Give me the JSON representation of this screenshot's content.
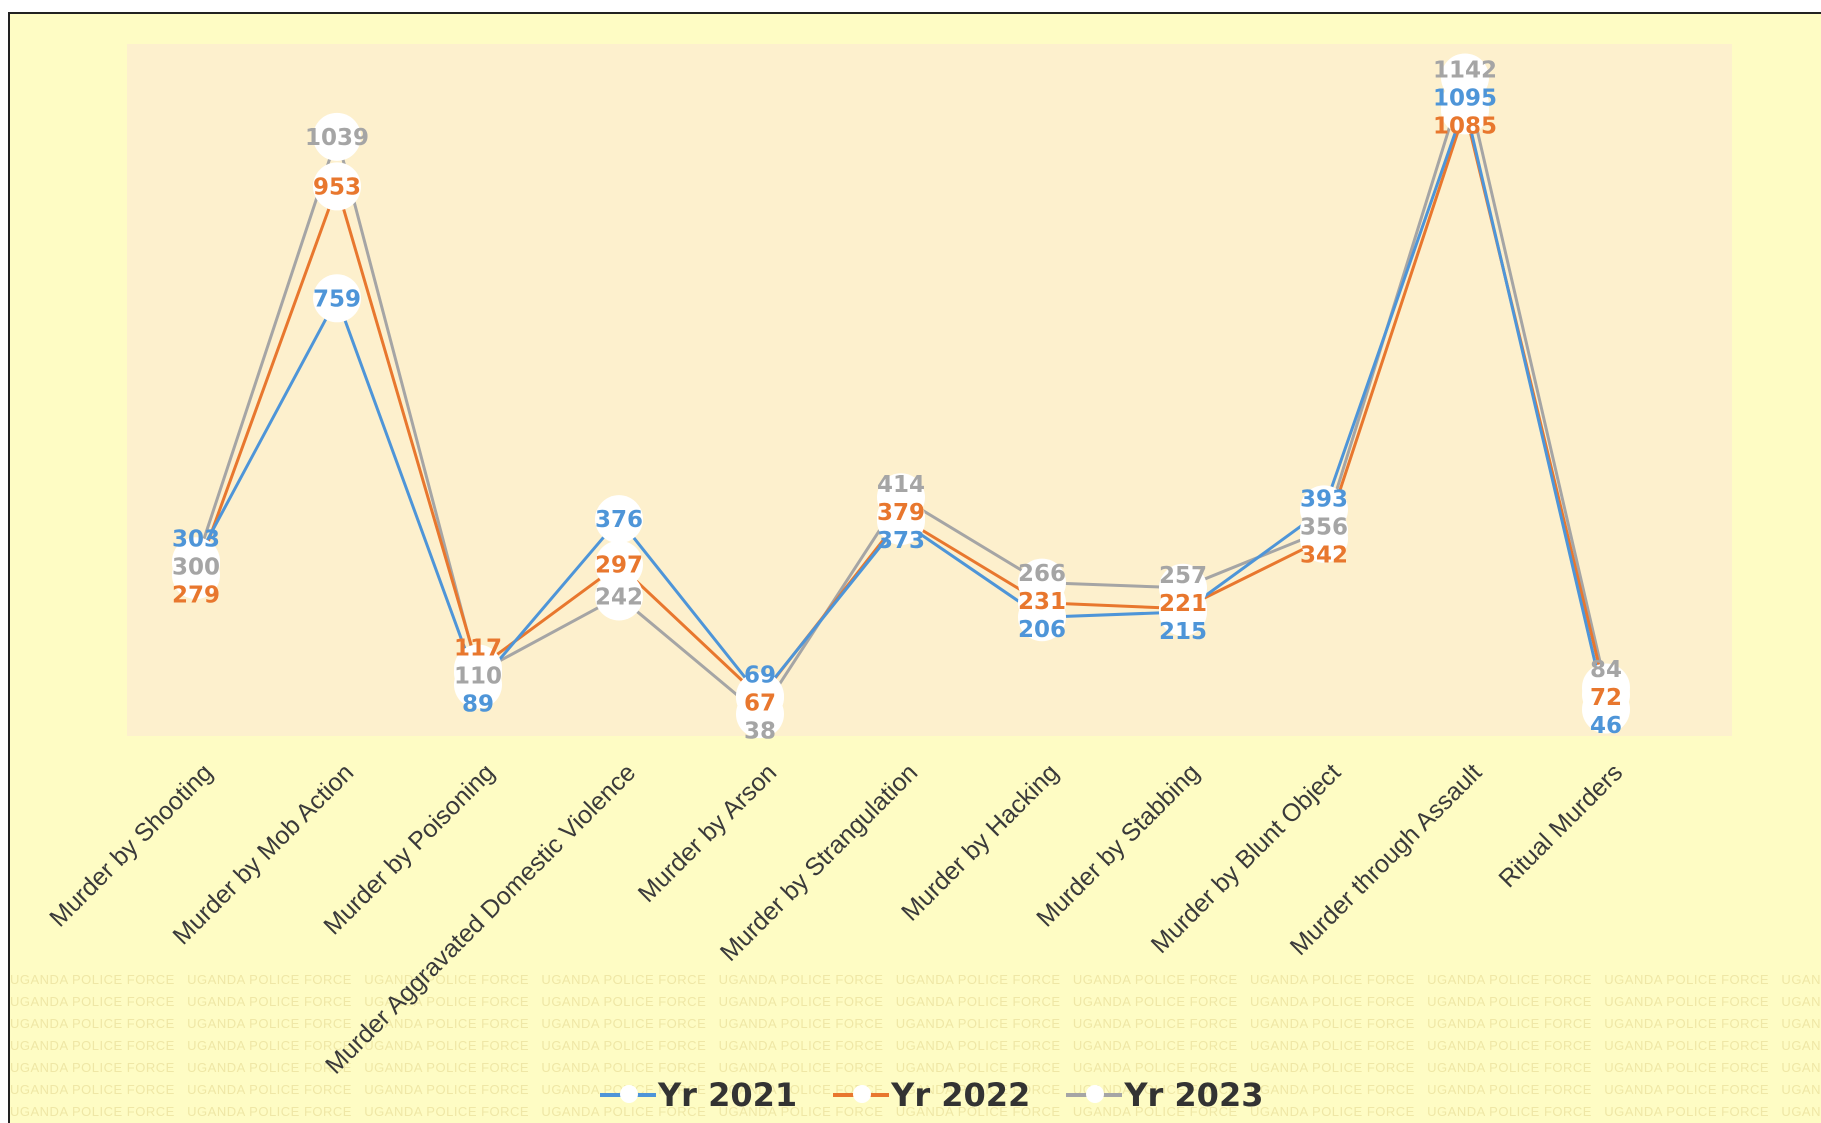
{
  "watermark_text": "UGANDA POLICE FORCE",
  "colors": {
    "page_bg": "#fefcc4",
    "plot_bg": "#fdf0cd",
    "Yr 2021": "#4e95d8",
    "Yr 2022": "#e8772e",
    "Yr 2023": "#a5a5a5"
  },
  "chart_data": {
    "type": "line",
    "categories": [
      "Murder by Shooting",
      "Murder by Mob Action",
      "Murder by Poisoning",
      "Murder Aggravated Domestic Violence",
      "Murder by Arson",
      "Murder by Strangulation",
      "Murder by Hacking",
      "Murder by Stabbing",
      "Murder by Blunt Object",
      "Murder through Assault",
      "Ritual Murders"
    ],
    "series": [
      {
        "name": "Yr 2021",
        "values": [
          303,
          759,
          89,
          376,
          69,
          373,
          206,
          215,
          393,
          1095,
          46
        ]
      },
      {
        "name": "Yr 2022",
        "values": [
          279,
          953,
          117,
          297,
          67,
          379,
          231,
          221,
          342,
          1085,
          72
        ]
      },
      {
        "name": "Yr 2023",
        "values": [
          300,
          1039,
          110,
          242,
          38,
          414,
          266,
          257,
          356,
          1142,
          84
        ]
      }
    ],
    "ylim": [
      0,
      1200
    ],
    "grid": false,
    "y_axis_visible": false,
    "data_labels": true,
    "legend_position": "bottom"
  }
}
